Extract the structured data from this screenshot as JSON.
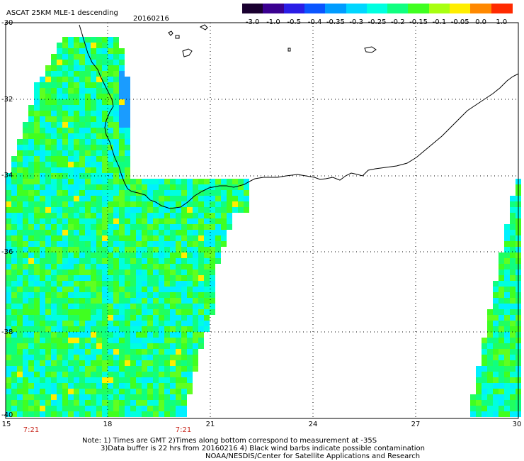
{
  "header": {
    "title": "ASCAT 25KM MLE-1 descending",
    "date": "20160216"
  },
  "colorbar": {
    "labels": [
      "-3.0",
      "-1.0",
      "-0.5",
      "-0.4",
      "-0.35",
      "-0.3",
      "-0.25",
      "-0.2",
      "-0.15",
      "-0.1",
      "-0.05",
      "0.0",
      "1.0"
    ],
    "colors": [
      "#1a0030",
      "#3a0090",
      "#2a1de6",
      "#0a55ff",
      "#009cff",
      "#00d6ff",
      "#00ffe0",
      "#10ff80",
      "#40ff20",
      "#a8ff10",
      "#ffee00",
      "#ff8800",
      "#ff2a00"
    ]
  },
  "axes": {
    "lat_labels": [
      "-30",
      "-32",
      "-34",
      "-36",
      "-38",
      "-40"
    ],
    "lon_labels": [
      "15",
      "18",
      "21",
      "24",
      "27",
      "30"
    ]
  },
  "times": [
    "7:21",
    "7:21"
  ],
  "notes": {
    "line1": "Note: 1) Times are GMT 2)Times along bottom correspond to measurement at -35S",
    "line2": "3)Data buffer is 22 hrs from 20160216 4) Black wind barbs indicate possible contamination",
    "line3": "NOAA/NESDIS/Center for Satellite Applications and Research"
  }
}
